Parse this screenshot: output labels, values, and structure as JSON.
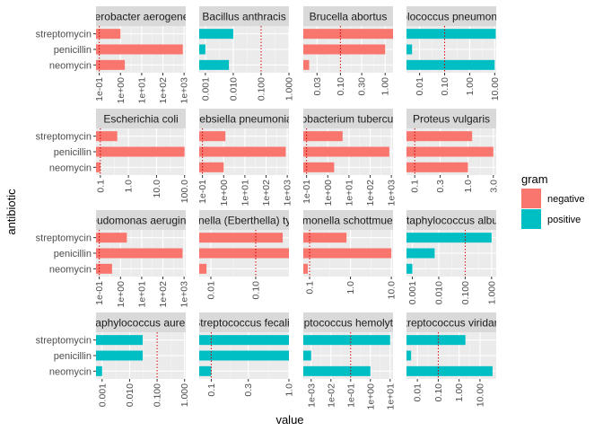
{
  "chart_data": {
    "type": "bar",
    "xlabel": "value",
    "ylabel": "antibiotic",
    "categories": [
      "streptomycin",
      "penicillin",
      "neomycin"
    ],
    "legend": {
      "title": "gram",
      "position": "right",
      "entries": [
        {
          "name": "negative",
          "color": "#F8766D"
        },
        {
          "name": "positive",
          "color": "#00BFC4"
        }
      ]
    },
    "reference_line": {
      "value": 0.1,
      "color": "#CC0000",
      "style": "dotted"
    },
    "grid": true,
    "scale": "log10",
    "panels": [
      {
        "title": "Aerobacter aerogenes",
        "gram": "negative",
        "values": {
          "streptomycin": 1,
          "penicillin": 870,
          "neomycin": 1.6
        },
        "xlim": [
          0.07,
          1200
        ],
        "ticks": [
          {
            "v": 0.1,
            "l": "1e-01"
          },
          {
            "v": 1,
            "l": "1e+00"
          },
          {
            "v": 10,
            "l": "1e+01"
          },
          {
            "v": 100,
            "l": "1e+02"
          },
          {
            "v": 1000,
            "l": "1e+03"
          }
        ]
      },
      {
        "title": "Bacillus anthracis",
        "gram": "positive",
        "values": {
          "streptomycin": 0.01,
          "penicillin": 0.001,
          "neomycin": 0.007
        },
        "xlim": [
          0.0006,
          1.0
        ],
        "ticks": [
          {
            "v": 0.001,
            "l": "0.001"
          },
          {
            "v": 0.01,
            "l": "0.010"
          },
          {
            "v": 0.1,
            "l": "0.100"
          },
          {
            "v": 1,
            "l": "1.000"
          }
        ]
      },
      {
        "title": "Brucella abortus",
        "gram": "negative",
        "values": {
          "streptomycin": 2,
          "penicillin": 1,
          "neomycin": 0.02
        },
        "xlim": [
          0.0148,
          1.5
        ],
        "ticks": [
          {
            "v": 0.03,
            "l": "0.03"
          },
          {
            "v": 0.1,
            "l": "0.10"
          },
          {
            "v": 0.3,
            "l": "0.30"
          },
          {
            "v": 1,
            "l": "1.00"
          }
        ]
      },
      {
        "title": "Diplococcus pneumoniae",
        "gram": "positive",
        "values": {
          "streptomycin": 11,
          "penicillin": 0.005,
          "neomycin": 10
        },
        "xlim": [
          0.003,
          11.5
        ],
        "ticks": [
          {
            "v": 0.01,
            "l": "0.01"
          },
          {
            "v": 0.1,
            "l": "0.10"
          },
          {
            "v": 1,
            "l": "1.00"
          },
          {
            "v": 10,
            "l": "10.00"
          }
        ]
      },
      {
        "title": "Escherichia coli",
        "gram": "negative",
        "values": {
          "streptomycin": 0.4,
          "penicillin": 100,
          "neomycin": 0.1
        },
        "xlim": [
          0.07,
          110
        ],
        "ticks": [
          {
            "v": 0.1,
            "l": "0.1"
          },
          {
            "v": 1,
            "l": "1.0"
          },
          {
            "v": 10,
            "l": "10.0"
          },
          {
            "v": 100,
            "l": "100.0"
          }
        ]
      },
      {
        "title": "Klebsiella pneumoniae",
        "gram": "negative",
        "values": {
          "streptomycin": 1.2,
          "penicillin": 850,
          "neomycin": 1
        },
        "xlim": [
          0.07,
          1200
        ],
        "ticks": [
          {
            "v": 0.1,
            "l": "1e-01"
          },
          {
            "v": 1,
            "l": "1e+00"
          },
          {
            "v": 10,
            "l": "1e+01"
          },
          {
            "v": 100,
            "l": "1e+02"
          },
          {
            "v": 1000,
            "l": "1e+03"
          }
        ]
      },
      {
        "title": "Mycobacterium tuberculosis",
        "gram": "negative",
        "values": {
          "streptomycin": 5,
          "penicillin": 800,
          "neomycin": 2
        },
        "xlim": [
          0.07,
          1200
        ],
        "ticks": [
          {
            "v": 0.1,
            "l": "1e-01"
          },
          {
            "v": 1,
            "l": "1e+00"
          },
          {
            "v": 10,
            "l": "1e+01"
          },
          {
            "v": 100,
            "l": "1e+02"
          },
          {
            "v": 1000,
            "l": "1e+03"
          }
        ]
      },
      {
        "title": "Proteus vulgaris",
        "gram": "negative",
        "values": {
          "streptomycin": 1.2,
          "penicillin": 3,
          "neomycin": 1
        },
        "xlim": [
          0.07,
          3.4
        ],
        "ticks": [
          {
            "v": 0.1,
            "l": "0.1"
          },
          {
            "v": 0.3,
            "l": "0.3"
          },
          {
            "v": 1,
            "l": "1.0"
          },
          {
            "v": 3,
            "l": "3.0"
          }
        ]
      },
      {
        "title": "Pseudomonas aeruginosa",
        "gram": "negative",
        "values": {
          "streptomycin": 2,
          "penicillin": 850,
          "neomycin": 0.4
        },
        "xlim": [
          0.07,
          1200
        ],
        "ticks": [
          {
            "v": 0.1,
            "l": "1e-01"
          },
          {
            "v": 1,
            "l": "1e+00"
          },
          {
            "v": 10,
            "l": "1e+01"
          },
          {
            "v": 100,
            "l": "1e+02"
          },
          {
            "v": 1000,
            "l": "1e+03"
          }
        ]
      },
      {
        "title": "Salmonella (Eberthella) typhosa",
        "gram": "negative",
        "values": {
          "streptomycin": 0.4,
          "penicillin": 1,
          "neomycin": 0.008
        },
        "xlim": [
          0.0055,
          0.55
        ],
        "ticks": [
          {
            "v": 0.01,
            "l": "0.01"
          },
          {
            "v": 0.1,
            "l": "0.10"
          }
        ]
      },
      {
        "title": "Salmonella schottmuelleri",
        "gram": "negative",
        "values": {
          "streptomycin": 0.8,
          "penicillin": 10,
          "neomycin": 0.09
        },
        "xlim": [
          0.07,
          11
        ],
        "ticks": [
          {
            "v": 0.1,
            "l": "0.1"
          },
          {
            "v": 1,
            "l": "1.0"
          },
          {
            "v": 10,
            "l": "10.0"
          }
        ]
      },
      {
        "title": "Staphylococcus albus",
        "gram": "positive",
        "values": {
          "streptomycin": 1,
          "penicillin": 0.007,
          "neomycin": 0.001
        },
        "xlim": [
          0.0006,
          1.5
        ],
        "ticks": [
          {
            "v": 0.001,
            "l": "0.001"
          },
          {
            "v": 0.01,
            "l": "0.010"
          },
          {
            "v": 0.1,
            "l": "0.100"
          },
          {
            "v": 1,
            "l": "1.000"
          }
        ]
      },
      {
        "title": "Staphylococcus aureus",
        "gram": "positive",
        "values": {
          "streptomycin": 0.03,
          "penicillin": 0.03,
          "neomycin": 0.001
        },
        "xlim": [
          0.0006,
          1.1
        ],
        "ticks": [
          {
            "v": 0.001,
            "l": "0.001"
          },
          {
            "v": 0.01,
            "l": "0.010"
          },
          {
            "v": 0.1,
            "l": "0.100"
          },
          {
            "v": 1,
            "l": "1.000"
          }
        ]
      },
      {
        "title": "Streptococcus fecalis",
        "gram": "positive",
        "values": {
          "streptomycin": 1,
          "penicillin": 1,
          "neomycin": 0.1
        },
        "xlim": [
          0.07,
          1.0
        ],
        "ticks": [
          {
            "v": 0.1,
            "l": "0.1"
          },
          {
            "v": 0.3,
            "l": "0.3"
          },
          {
            "v": 1,
            "l": "1.0"
          }
        ]
      },
      {
        "title": "Streptococcus hemolyticus",
        "gram": "positive",
        "values": {
          "streptomycin": 10,
          "penicillin": 0.001,
          "neomycin": 1
        },
        "xlim": [
          0.0004,
          14
        ],
        "ticks": [
          {
            "v": 0.001,
            "l": "1e-03"
          },
          {
            "v": 0.01,
            "l": "1e-02"
          },
          {
            "v": 0.1,
            "l": "1e-01"
          },
          {
            "v": 1,
            "l": "1e+00"
          },
          {
            "v": 10,
            "l": "1e+01"
          }
        ]
      },
      {
        "title": "Streptococcus viridans",
        "gram": "positive",
        "values": {
          "streptomycin": 2,
          "penicillin": 0.005,
          "neomycin": 40
        },
        "xlim": [
          0.003,
          60
        ],
        "ticks": [
          {
            "v": 0.01,
            "l": "0.01"
          },
          {
            "v": 0.1,
            "l": "0.10"
          },
          {
            "v": 1,
            "l": "1.00"
          },
          {
            "v": 10,
            "l": "10.00"
          }
        ]
      }
    ]
  }
}
